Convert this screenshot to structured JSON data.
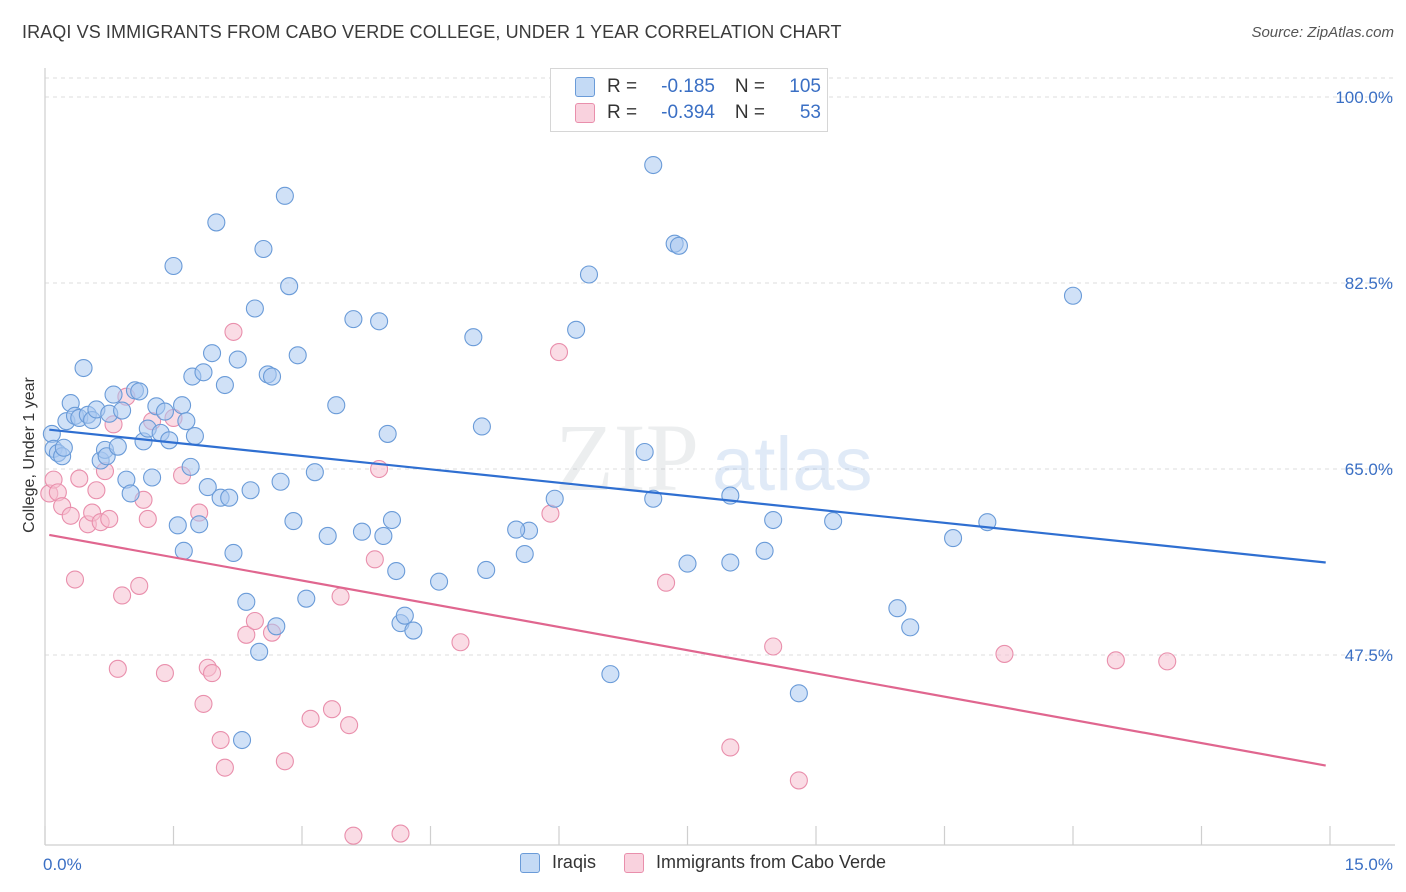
{
  "header": {
    "title": "IRAQI VS IMMIGRANTS FROM CABO VERDE COLLEGE, UNDER 1 YEAR CORRELATION CHART",
    "source": "Source: ZipAtlas.com"
  },
  "watermark": {
    "zip": "ZIP",
    "atlas": "atlas"
  },
  "legend": {
    "rows": [
      {
        "r_label": "R =",
        "r_value": "-0.185",
        "n_label": "N =",
        "n_value": "105"
      },
      {
        "r_label": "R =",
        "r_value": "-0.394",
        "n_label": "N =",
        "n_value": "53"
      }
    ]
  },
  "bottom_legend": {
    "iraqis": "Iraqis",
    "cabo": "Immigrants from Cabo Verde"
  },
  "colors": {
    "iraqis_fill": "#a9c8f0",
    "iraqis_stroke": "#6a9bd8",
    "iraqis_line": "#2f6fd1",
    "cabo_fill": "#f6bfd0",
    "cabo_stroke": "#e98fac",
    "cabo_line": "#e0668f",
    "tick_label": "#3a6fc4"
  },
  "chart_data": {
    "type": "scatter",
    "title": "IRAQI VS IMMIGRANTS FROM CABO VERDE COLLEGE, UNDER 1 YEAR CORRELATION CHART",
    "xlabel": "",
    "ylabel": "College, Under 1 year",
    "xlim": [
      0,
      15
    ],
    "ylim": [
      30,
      102
    ],
    "x_tick_labels": [
      {
        "value": 0,
        "label": "0.0%"
      },
      {
        "value": 15,
        "label": "15.0%"
      }
    ],
    "y_tick_labels": [
      {
        "value": 100,
        "label": "100.0%"
      },
      {
        "value": 82.5,
        "label": "82.5%"
      },
      {
        "value": 65,
        "label": "65.0%"
      },
      {
        "value": 47.5,
        "label": "47.5%"
      }
    ],
    "grid": true,
    "legend_position": "top-center",
    "series": [
      {
        "name": "Iraqis",
        "color": "#a9c8f0",
        "trend": {
          "x": [
            0.05,
            14.95
          ],
          "y": [
            68.7,
            56.2
          ]
        },
        "points": [
          [
            0.08,
            68.3
          ],
          [
            0.1,
            66.9
          ],
          [
            0.15,
            66.5
          ],
          [
            0.2,
            66.2
          ],
          [
            0.22,
            67.0
          ],
          [
            0.25,
            69.5
          ],
          [
            0.3,
            71.2
          ],
          [
            0.35,
            70.0
          ],
          [
            0.4,
            69.8
          ],
          [
            0.45,
            74.5
          ],
          [
            0.5,
            70.1
          ],
          [
            0.55,
            69.6
          ],
          [
            0.6,
            70.6
          ],
          [
            0.65,
            65.8
          ],
          [
            0.7,
            66.8
          ],
          [
            0.72,
            66.2
          ],
          [
            0.75,
            70.2
          ],
          [
            0.8,
            72.0
          ],
          [
            0.85,
            67.1
          ],
          [
            0.9,
            70.5
          ],
          [
            0.95,
            64.0
          ],
          [
            1.0,
            62.7
          ],
          [
            1.05,
            72.4
          ],
          [
            1.1,
            72.3
          ],
          [
            1.15,
            67.6
          ],
          [
            1.2,
            68.8
          ],
          [
            1.25,
            64.2
          ],
          [
            1.3,
            70.9
          ],
          [
            1.35,
            68.4
          ],
          [
            1.4,
            70.4
          ],
          [
            1.45,
            67.7
          ],
          [
            1.5,
            84.1
          ],
          [
            1.55,
            59.7
          ],
          [
            1.6,
            71.0
          ],
          [
            1.62,
            57.3
          ],
          [
            1.65,
            69.5
          ],
          [
            1.7,
            65.2
          ],
          [
            1.72,
            73.7
          ],
          [
            1.75,
            68.1
          ],
          [
            1.8,
            59.8
          ],
          [
            1.85,
            74.1
          ],
          [
            1.9,
            63.3
          ],
          [
            1.95,
            75.9
          ],
          [
            2.0,
            88.2
          ],
          [
            2.05,
            62.3
          ],
          [
            2.1,
            72.9
          ],
          [
            2.15,
            62.3
          ],
          [
            2.2,
            57.1
          ],
          [
            2.25,
            75.3
          ],
          [
            2.3,
            39.5
          ],
          [
            2.35,
            52.5
          ],
          [
            2.4,
            63.0
          ],
          [
            2.45,
            80.1
          ],
          [
            2.5,
            47.8
          ],
          [
            2.55,
            85.7
          ],
          [
            2.6,
            73.9
          ],
          [
            2.65,
            73.7
          ],
          [
            2.7,
            50.2
          ],
          [
            2.75,
            63.8
          ],
          [
            2.8,
            90.7
          ],
          [
            2.85,
            82.2
          ],
          [
            2.9,
            60.1
          ],
          [
            2.95,
            75.7
          ],
          [
            3.05,
            52.8
          ],
          [
            3.15,
            64.7
          ],
          [
            3.3,
            58.7
          ],
          [
            3.4,
            71.0
          ],
          [
            3.6,
            79.1
          ],
          [
            3.7,
            59.1
          ],
          [
            3.9,
            78.9
          ],
          [
            3.95,
            58.7
          ],
          [
            4.0,
            68.3
          ],
          [
            4.05,
            60.2
          ],
          [
            4.1,
            55.4
          ],
          [
            4.15,
            50.5
          ],
          [
            4.2,
            51.2
          ],
          [
            4.6,
            54.4
          ],
          [
            5.15,
            55.5
          ],
          [
            4.3,
            49.8
          ],
          [
            5.0,
            77.4
          ],
          [
            5.1,
            69.0
          ],
          [
            5.6,
            57.0
          ],
          [
            5.65,
            59.2
          ],
          [
            5.5,
            59.3
          ],
          [
            5.95,
            62.2
          ],
          [
            6.2,
            78.1
          ],
          [
            6.35,
            83.3
          ],
          [
            6.6,
            45.7
          ],
          [
            7.0,
            66.6
          ],
          [
            7.1,
            62.2
          ],
          [
            7.1,
            93.6
          ],
          [
            7.35,
            86.2
          ],
          [
            7.4,
            86.0
          ],
          [
            7.5,
            56.1
          ],
          [
            8.0,
            56.2
          ],
          [
            8.5,
            60.2
          ],
          [
            8.4,
            57.3
          ],
          [
            8.8,
            43.9
          ],
          [
            9.2,
            60.1
          ],
          [
            9.95,
            51.9
          ],
          [
            10.1,
            50.1
          ],
          [
            12.0,
            81.3
          ],
          [
            11.0,
            60.0
          ],
          [
            10.6,
            58.5
          ],
          [
            8.0,
            62.5
          ]
        ]
      },
      {
        "name": "Immigrants from Cabo Verde",
        "color": "#f6bfd0",
        "trend": {
          "x": [
            0.05,
            14.95
          ],
          "y": [
            58.8,
            37.1
          ]
        },
        "points": [
          [
            0.05,
            62.7
          ],
          [
            0.1,
            64.0
          ],
          [
            0.15,
            62.8
          ],
          [
            0.2,
            61.5
          ],
          [
            0.3,
            60.6
          ],
          [
            0.35,
            54.6
          ],
          [
            0.4,
            64.1
          ],
          [
            0.5,
            59.8
          ],
          [
            0.55,
            60.9
          ],
          [
            0.6,
            63.0
          ],
          [
            0.65,
            60.0
          ],
          [
            0.7,
            64.8
          ],
          [
            0.75,
            60.3
          ],
          [
            0.8,
            69.2
          ],
          [
            0.85,
            46.2
          ],
          [
            0.9,
            53.1
          ],
          [
            0.95,
            71.8
          ],
          [
            1.1,
            54.0
          ],
          [
            1.15,
            62.1
          ],
          [
            1.2,
            60.3
          ],
          [
            1.25,
            69.5
          ],
          [
            1.4,
            45.8
          ],
          [
            1.5,
            69.8
          ],
          [
            1.6,
            64.4
          ],
          [
            1.8,
            60.9
          ],
          [
            1.85,
            42.9
          ],
          [
            1.9,
            46.3
          ],
          [
            1.95,
            45.8
          ],
          [
            2.05,
            39.5
          ],
          [
            2.1,
            36.9
          ],
          [
            2.2,
            77.9
          ],
          [
            2.35,
            49.4
          ],
          [
            2.45,
            50.7
          ],
          [
            2.65,
            49.6
          ],
          [
            2.8,
            37.5
          ],
          [
            3.1,
            41.5
          ],
          [
            3.35,
            42.4
          ],
          [
            3.45,
            53.0
          ],
          [
            3.55,
            40.9
          ],
          [
            3.6,
            30.5
          ],
          [
            3.85,
            56.5
          ],
          [
            3.9,
            65.0
          ],
          [
            4.15,
            30.7
          ],
          [
            4.85,
            48.7
          ],
          [
            5.9,
            60.8
          ],
          [
            6.0,
            76.0
          ],
          [
            7.25,
            54.3
          ],
          [
            8.0,
            38.8
          ],
          [
            8.5,
            48.3
          ],
          [
            8.8,
            35.7
          ],
          [
            11.2,
            47.6
          ],
          [
            12.5,
            47.0
          ],
          [
            13.1,
            46.9
          ]
        ]
      }
    ]
  }
}
